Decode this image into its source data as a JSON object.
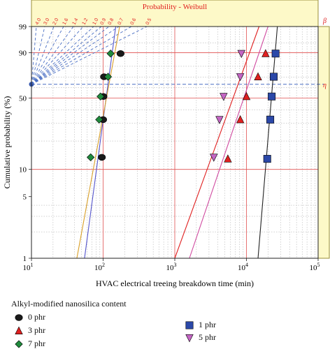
{
  "chart_data": {
    "type": "scatter",
    "title": "Probability - Weibull",
    "xlabel": "HVAC electrical treeing breakdown time (min)",
    "ylabel": "Cumulative probability (%)",
    "x_scale": "log",
    "y_scale": "weibull",
    "xlim": [
      10,
      100000
    ],
    "ylim": [
      1,
      99
    ],
    "x_ticks": [
      {
        "base": "10",
        "exp": "1"
      },
      {
        "base": "10",
        "exp": "2"
      },
      {
        "base": "10",
        "exp": "3"
      },
      {
        "base": "10",
        "exp": "4"
      },
      {
        "base": "10",
        "exp": "5"
      }
    ],
    "y_ticks": [
      "1",
      "5",
      "10",
      "50",
      "90",
      "99"
    ],
    "right_axis_labels": {
      "beta": "β",
      "eta": "η"
    },
    "beta_scale_labels": [
      "4.0",
      "3.0",
      "2.0",
      "1.6",
      "1.4",
      "1.2",
      "1.0",
      "0.9",
      "0.8",
      "0.7",
      "0.6",
      "0.5"
    ],
    "legend_title": "Alkyl-modified nanosilica content",
    "series": [
      {
        "name": "0 phr",
        "marker": "circle",
        "color": "#1a1a1a",
        "line_color": "#5555cc",
        "x": [
          96,
          100,
          101,
          103,
          175
        ],
        "y": [
          13.5,
          32.5,
          51.5,
          70.5,
          89.5
        ]
      },
      {
        "name": "3 phr",
        "marker": "triangle",
        "color": "#e02020",
        "line_color": "#e02020",
        "x": [
          5500,
          8200,
          10000,
          14500,
          18500
        ],
        "y": [
          13,
          32.5,
          51.5,
          70.5,
          89.5
        ]
      },
      {
        "name": "7 phr",
        "marker": "diamond",
        "color": "#1f8a3c",
        "line_color": "#d9a02a",
        "x": [
          67,
          88,
          92,
          117,
          127
        ],
        "y": [
          13.5,
          32.5,
          51.5,
          70.5,
          89.5
        ]
      },
      {
        "name": "1 phr",
        "marker": "square",
        "color": "#2b48a8",
        "line_color": "#222222",
        "x": [
          19500,
          21500,
          22500,
          24000,
          25500
        ],
        "y": [
          13,
          32.5,
          51.5,
          70.5,
          89.5
        ]
      },
      {
        "name": "5 phr",
        "marker": "triangle-down",
        "color": "#c466c4",
        "line_color": "#d04aa0",
        "x": [
          3500,
          4200,
          4800,
          8200,
          8500
        ],
        "y": [
          13.5,
          32.5,
          51.5,
          70.5,
          89.5
        ]
      }
    ],
    "fit_lines": [
      {
        "series": "0 phr",
        "x": [
          55,
          150
        ],
        "y": [
          1,
          99
        ]
      },
      {
        "series": "7 phr",
        "x": [
          43,
          170
        ],
        "y": [
          1,
          99
        ]
      },
      {
        "series": "3 phr",
        "x": [
          1000,
          15000
        ],
        "y": [
          1,
          99
        ]
      },
      {
        "series": "5 phr",
        "x": [
          1600,
          20000
        ],
        "y": [
          1,
          99
        ]
      },
      {
        "series": "1 phr",
        "x": [
          14500,
          27000
        ],
        "y": [
          1,
          99
        ]
      }
    ],
    "eta_level": 63.2,
    "grid": true,
    "legend_position": "bottom"
  }
}
